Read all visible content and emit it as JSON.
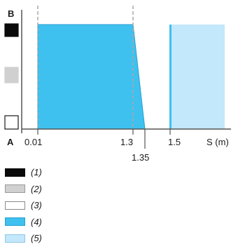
{
  "axis": {
    "y_label": "B",
    "origin_label": "A",
    "x_label": "S (m)",
    "ticks": [
      "0.01",
      "1.3",
      "1.35",
      "1.5"
    ]
  },
  "side_markers": [
    {
      "color": "#0a0a0a",
      "border": "#0a0a0a"
    },
    {
      "color": "#d0d0d0",
      "border": "#d0d0d0"
    },
    {
      "color": "#ffffff",
      "border": "#1a1a1a"
    }
  ],
  "regions": [
    {
      "name": "region-4",
      "color": "#3ec1ef"
    },
    {
      "name": "region-5",
      "color": "#c3e7fb"
    }
  ],
  "legend": {
    "items": [
      {
        "label": "(1)",
        "color": "#0a0a0a",
        "border": "#0a0a0a"
      },
      {
        "label": "(2)",
        "color": "#d0d0d0",
        "border": "#9a9a9a"
      },
      {
        "label": "(3)",
        "color": "#ffffff",
        "border": "#8a8a8a"
      },
      {
        "label": "(4)",
        "color": "#3ec1ef",
        "border": "#2a9fcf"
      },
      {
        "label": "(5)",
        "color": "#c3e7fb",
        "border": "#8fc9e8"
      }
    ]
  }
}
